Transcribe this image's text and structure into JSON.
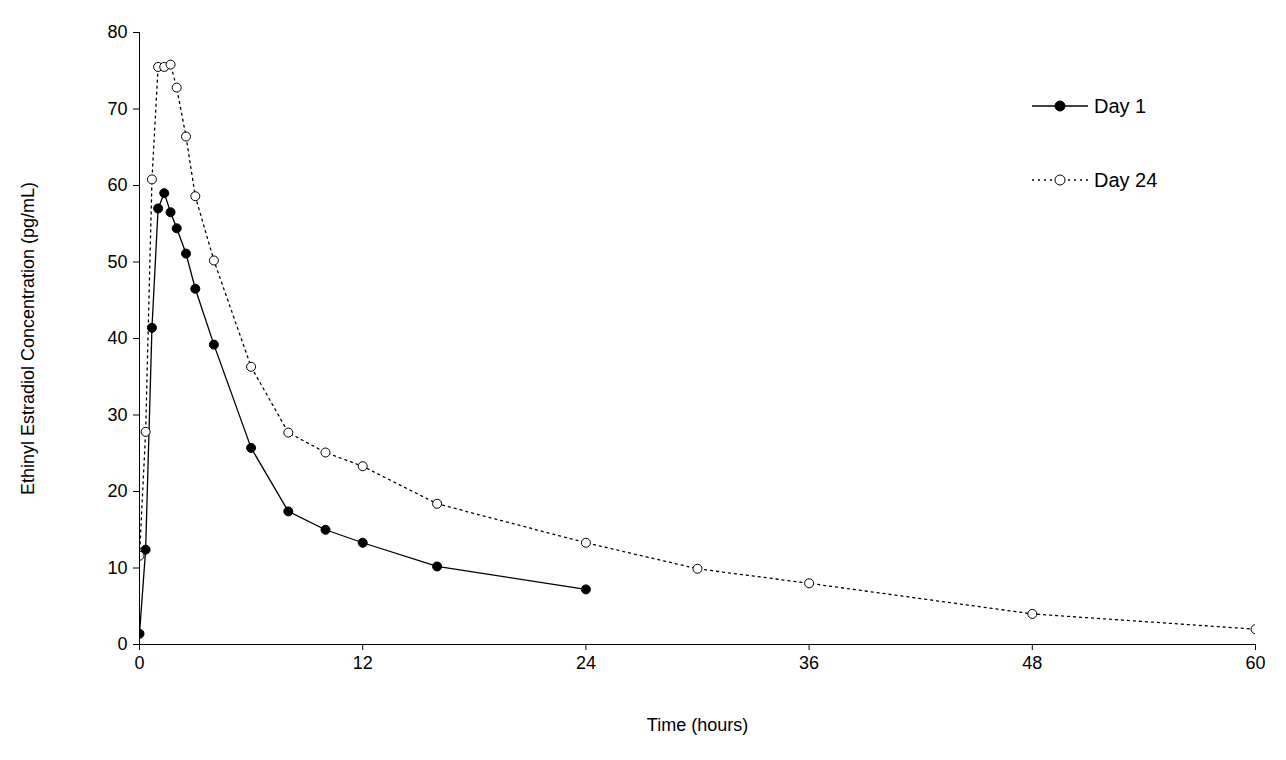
{
  "chart_data": {
    "type": "line",
    "x_label": "Time (hours)",
    "y_label": "Ethinyl Estradiol Concentration (pg/mL)",
    "xlim": [
      0,
      60
    ],
    "xticks": [
      0,
      12,
      24,
      36,
      48,
      60
    ],
    "ylim": [
      0,
      80
    ],
    "yticks": [
      0,
      10,
      20,
      30,
      40,
      50,
      60,
      70,
      80
    ],
    "grid": false,
    "legend": "top-right",
    "series": [
      {
        "name": "Day 1",
        "color": "#000000",
        "marker": "filled circle",
        "line_style": "solid",
        "x": [
          0,
          0.33,
          0.67,
          1,
          1.33,
          1.67,
          2,
          2.5,
          3,
          4,
          6,
          8,
          10,
          12,
          16,
          24
        ],
        "values": [
          1.4,
          12.4,
          41.4,
          57,
          59,
          56.5,
          54.4,
          51.1,
          46.5,
          39.2,
          25.7,
          17.4,
          15.0,
          13.3,
          10.2,
          7.2
        ]
      },
      {
        "name": "Day 24",
        "color": "#000000",
        "marker": "open circle",
        "line_style": "dotted",
        "x": [
          0,
          0.33,
          0.67,
          1,
          1.33,
          1.67,
          2,
          2.5,
          3,
          4,
          6,
          8,
          10,
          12,
          16,
          24,
          30,
          36,
          48,
          60
        ],
        "values": [
          11.6,
          27.8,
          60.8,
          75.5,
          75.5,
          75.8,
          72.8,
          66.4,
          58.6,
          50.2,
          36.3,
          27.7,
          25.1,
          23.3,
          18.4,
          13.3,
          9.9,
          8.0,
          4.0,
          2.0
        ]
      }
    ]
  }
}
